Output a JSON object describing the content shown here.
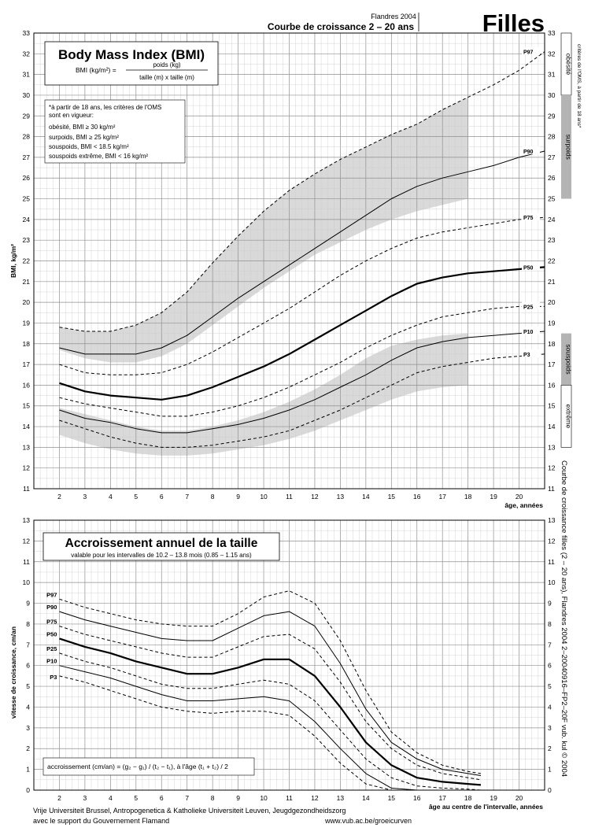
{
  "header": {
    "source_line": "Flandres 2004",
    "chart_title": "Courbe de croissance 2 – 20 ans",
    "sex": "Filles"
  },
  "side_text": {
    "criteria_note": "critères de l'OMS, à partir de 18 ans*",
    "obesity": "obésité",
    "overweight": "surpoids",
    "underweight": "souspoids",
    "extreme": "extrême",
    "vertical_caption": "Courbe de croissance filles (2 – 20 ans), Flandres 2004     2–20040916–FP2–20F     vub. kul © 2004"
  },
  "footer": {
    "line1": "Vrije Universiteit Brussel, Antropogenetica & Katholieke Universiteit Leuven, Jeugdgezondheidszorg",
    "line2": "avec le support du Gouvernement Flamand",
    "url": "www.vub.ac.be/groeicurven"
  },
  "chart_data": [
    {
      "type": "line",
      "title": "Body Mass Index (BMI)",
      "formula": {
        "lhs": "BMI (kg/m²) =",
        "numerator": "poids (kg)",
        "denominator": "taille (m)  x  taille (m)"
      },
      "note_lines": [
        "*à partir de 18 ans, les critères de l'OMS",
        "sont en vigueur:",
        "obésité, BMI ≥ 30 kg/m²",
        "surpoids, BMI ≥ 25 kg/m²",
        "souspoids, BMI < 18.5 kg/m²",
        "souspoids extrême, BMI < 16 kg/m²"
      ],
      "xlabel": "âge, années",
      "ylabel": "BMI, kg/m²",
      "xlim": [
        1,
        21
      ],
      "ylim": [
        11,
        33
      ],
      "x_ticks": [
        2,
        3,
        4,
        5,
        6,
        7,
        8,
        9,
        10,
        11,
        12,
        13,
        14,
        15,
        16,
        17,
        18,
        19,
        20
      ],
      "y_ticks": [
        11,
        12,
        13,
        14,
        15,
        16,
        17,
        18,
        19,
        20,
        21,
        22,
        23,
        24,
        25,
        26,
        27,
        28,
        29,
        30,
        31,
        32,
        33
      ],
      "grid": true,
      "x": [
        2,
        3,
        4,
        5,
        6,
        7,
        8,
        9,
        10,
        11,
        12,
        13,
        14,
        15,
        16,
        17,
        18,
        19,
        20,
        21
      ],
      "series": [
        {
          "name": "P97",
          "style": "dashed",
          "values": [
            18.8,
            18.6,
            18.6,
            18.9,
            19.5,
            20.5,
            21.9,
            23.2,
            24.4,
            25.4,
            26.2,
            26.9,
            27.5,
            28.1,
            28.6,
            29.3,
            29.9,
            30.5,
            31.2,
            32.1
          ]
        },
        {
          "name": "P90",
          "style": "solid",
          "values": [
            17.8,
            17.5,
            17.5,
            17.5,
            17.8,
            18.4,
            19.3,
            20.2,
            21.0,
            21.8,
            22.6,
            23.4,
            24.2,
            25.0,
            25.6,
            26.0,
            26.3,
            26.6,
            27.0,
            27.3
          ]
        },
        {
          "name": "P75",
          "style": "dashed",
          "values": [
            17.0,
            16.6,
            16.5,
            16.5,
            16.6,
            17.0,
            17.6,
            18.3,
            19.0,
            19.7,
            20.5,
            21.3,
            22.0,
            22.6,
            23.1,
            23.4,
            23.6,
            23.8,
            24.0,
            24.1
          ]
        },
        {
          "name": "P50",
          "style": "bold",
          "values": [
            16.1,
            15.7,
            15.5,
            15.4,
            15.3,
            15.5,
            15.9,
            16.4,
            16.9,
            17.5,
            18.2,
            18.9,
            19.6,
            20.3,
            20.9,
            21.2,
            21.4,
            21.5,
            21.6,
            21.7
          ]
        },
        {
          "name": "P25",
          "style": "dashed",
          "values": [
            15.4,
            15.1,
            14.9,
            14.7,
            14.5,
            14.5,
            14.7,
            15.0,
            15.4,
            15.9,
            16.5,
            17.1,
            17.8,
            18.4,
            18.9,
            19.3,
            19.5,
            19.7,
            19.8,
            19.8
          ]
        },
        {
          "name": "P10",
          "style": "solid",
          "values": [
            14.8,
            14.4,
            14.2,
            13.9,
            13.7,
            13.7,
            13.9,
            14.1,
            14.4,
            14.8,
            15.3,
            15.9,
            16.5,
            17.2,
            17.8,
            18.1,
            18.3,
            18.4,
            18.5,
            18.6
          ]
        },
        {
          "name": "P3",
          "style": "dashed",
          "values": [
            14.3,
            13.9,
            13.5,
            13.2,
            13.0,
            13.0,
            13.1,
            13.3,
            13.5,
            13.8,
            14.3,
            14.8,
            15.4,
            16.0,
            16.6,
            16.9,
            17.1,
            17.3,
            17.4,
            17.5
          ]
        }
      ],
      "bands": [
        {
          "x": [
            2,
            3,
            4,
            5,
            6,
            7,
            8,
            9,
            10,
            11,
            12,
            13,
            14,
            15,
            16,
            17,
            18
          ],
          "upper": [
            18.8,
            18.6,
            18.6,
            18.9,
            19.5,
            20.5,
            21.9,
            23.2,
            24.4,
            25.4,
            26.2,
            26.9,
            27.5,
            28.1,
            28.6,
            29.3,
            29.9
          ],
          "lower": [
            17.7,
            17.3,
            17.1,
            17.1,
            17.4,
            18.0,
            18.9,
            19.8,
            20.7,
            21.5,
            22.3,
            22.9,
            23.5,
            24.0,
            24.4,
            24.7,
            25.0
          ]
        },
        {
          "x": [
            2,
            3,
            4,
            5,
            6,
            7,
            8,
            9,
            10,
            11,
            12,
            13,
            14,
            15,
            16,
            17,
            18
          ],
          "upper": [
            14.9,
            14.6,
            14.3,
            14.0,
            13.8,
            13.8,
            14.0,
            14.3,
            14.7,
            15.2,
            15.8,
            16.5,
            17.3,
            17.9,
            18.2,
            18.4,
            18.5
          ],
          "lower": [
            13.6,
            13.2,
            12.9,
            12.7,
            12.6,
            12.6,
            12.7,
            12.9,
            13.1,
            13.4,
            13.8,
            14.3,
            14.8,
            15.3,
            15.7,
            15.9,
            16.0
          ]
        }
      ],
      "right_markers": [
        {
          "label": "obésité",
          "from": 30,
          "to": 33,
          "fill": "#ffffff"
        },
        {
          "label": "surpoids",
          "from": 25,
          "to": 30,
          "fill": "#b4b4b4"
        },
        {
          "label": "souspoids",
          "from": 16,
          "to": 18.5,
          "fill": "#b4b4b4"
        },
        {
          "label": "extrême",
          "from": 13,
          "to": 16,
          "fill": "#ffffff"
        }
      ]
    },
    {
      "type": "line",
      "title": "Accroissement annuel de la taille",
      "subtitle": "valable pour les intervalles de 10.2 – 13.8 mois (0.85 – 1.15 ans)",
      "formula_note": "accroissement (cm/an) = (g₂ − g₁) / (t₂ − t₁), à l'âge (t₁ + t₂) / 2",
      "xlabel": "âge au centre de l'intervalle, années",
      "ylabel": "vitesse de croissance, cm/an",
      "xlim": [
        1,
        21
      ],
      "ylim": [
        0,
        13
      ],
      "x_ticks": [
        2,
        3,
        4,
        5,
        6,
        7,
        8,
        9,
        10,
        11,
        12,
        13,
        14,
        15,
        16,
        17,
        18,
        19,
        20
      ],
      "y_ticks": [
        0,
        1,
        2,
        3,
        4,
        5,
        6,
        7,
        8,
        9,
        10,
        11,
        12,
        13
      ],
      "grid": true,
      "x": [
        2,
        3,
        4,
        5,
        6,
        7,
        8,
        9,
        10,
        11,
        12,
        13,
        14,
        15,
        16,
        17,
        18,
        18.5
      ],
      "series": [
        {
          "name": "P97",
          "style": "dashed",
          "values": [
            9.2,
            8.8,
            8.5,
            8.2,
            8.0,
            7.9,
            7.9,
            8.5,
            9.3,
            9.6,
            9.0,
            7.2,
            4.8,
            2.8,
            1.8,
            1.2,
            0.9,
            0.8
          ]
        },
        {
          "name": "P90",
          "style": "solid",
          "values": [
            8.6,
            8.2,
            7.9,
            7.6,
            7.3,
            7.2,
            7.2,
            7.8,
            8.4,
            8.6,
            7.9,
            6.1,
            3.9,
            2.3,
            1.5,
            1.0,
            0.8,
            0.7
          ]
        },
        {
          "name": "P75",
          "style": "dashed",
          "values": [
            7.9,
            7.5,
            7.2,
            6.9,
            6.6,
            6.4,
            6.4,
            6.9,
            7.4,
            7.5,
            6.8,
            5.2,
            3.3,
            2.0,
            1.2,
            0.8,
            0.6,
            0.5
          ]
        },
        {
          "name": "P50",
          "style": "bold",
          "values": [
            7.3,
            6.9,
            6.6,
            6.2,
            5.9,
            5.6,
            5.6,
            5.9,
            6.3,
            6.3,
            5.5,
            4.0,
            2.3,
            1.2,
            0.6,
            0.4,
            0.3,
            0.25
          ]
        },
        {
          "name": "P25",
          "style": "dashed",
          "values": [
            6.6,
            6.2,
            5.9,
            5.5,
            5.1,
            4.9,
            4.9,
            5.1,
            5.3,
            5.1,
            4.3,
            2.9,
            1.5,
            0.6,
            0.2,
            0.1,
            0.05,
            0.0
          ]
        },
        {
          "name": "P10",
          "style": "solid",
          "values": [
            6.0,
            5.7,
            5.4,
            5.0,
            4.6,
            4.3,
            4.3,
            4.4,
            4.5,
            4.3,
            3.3,
            2.0,
            0.8,
            0.1,
            0.0,
            0.0,
            0.0,
            0.0
          ]
        },
        {
          "name": "P3",
          "style": "dashed",
          "values": [
            5.5,
            5.2,
            4.8,
            4.4,
            4.0,
            3.8,
            3.7,
            3.8,
            3.8,
            3.6,
            2.6,
            1.3,
            0.3,
            0.0,
            0.0,
            0.0,
            0.0,
            0.0
          ]
        }
      ]
    }
  ]
}
